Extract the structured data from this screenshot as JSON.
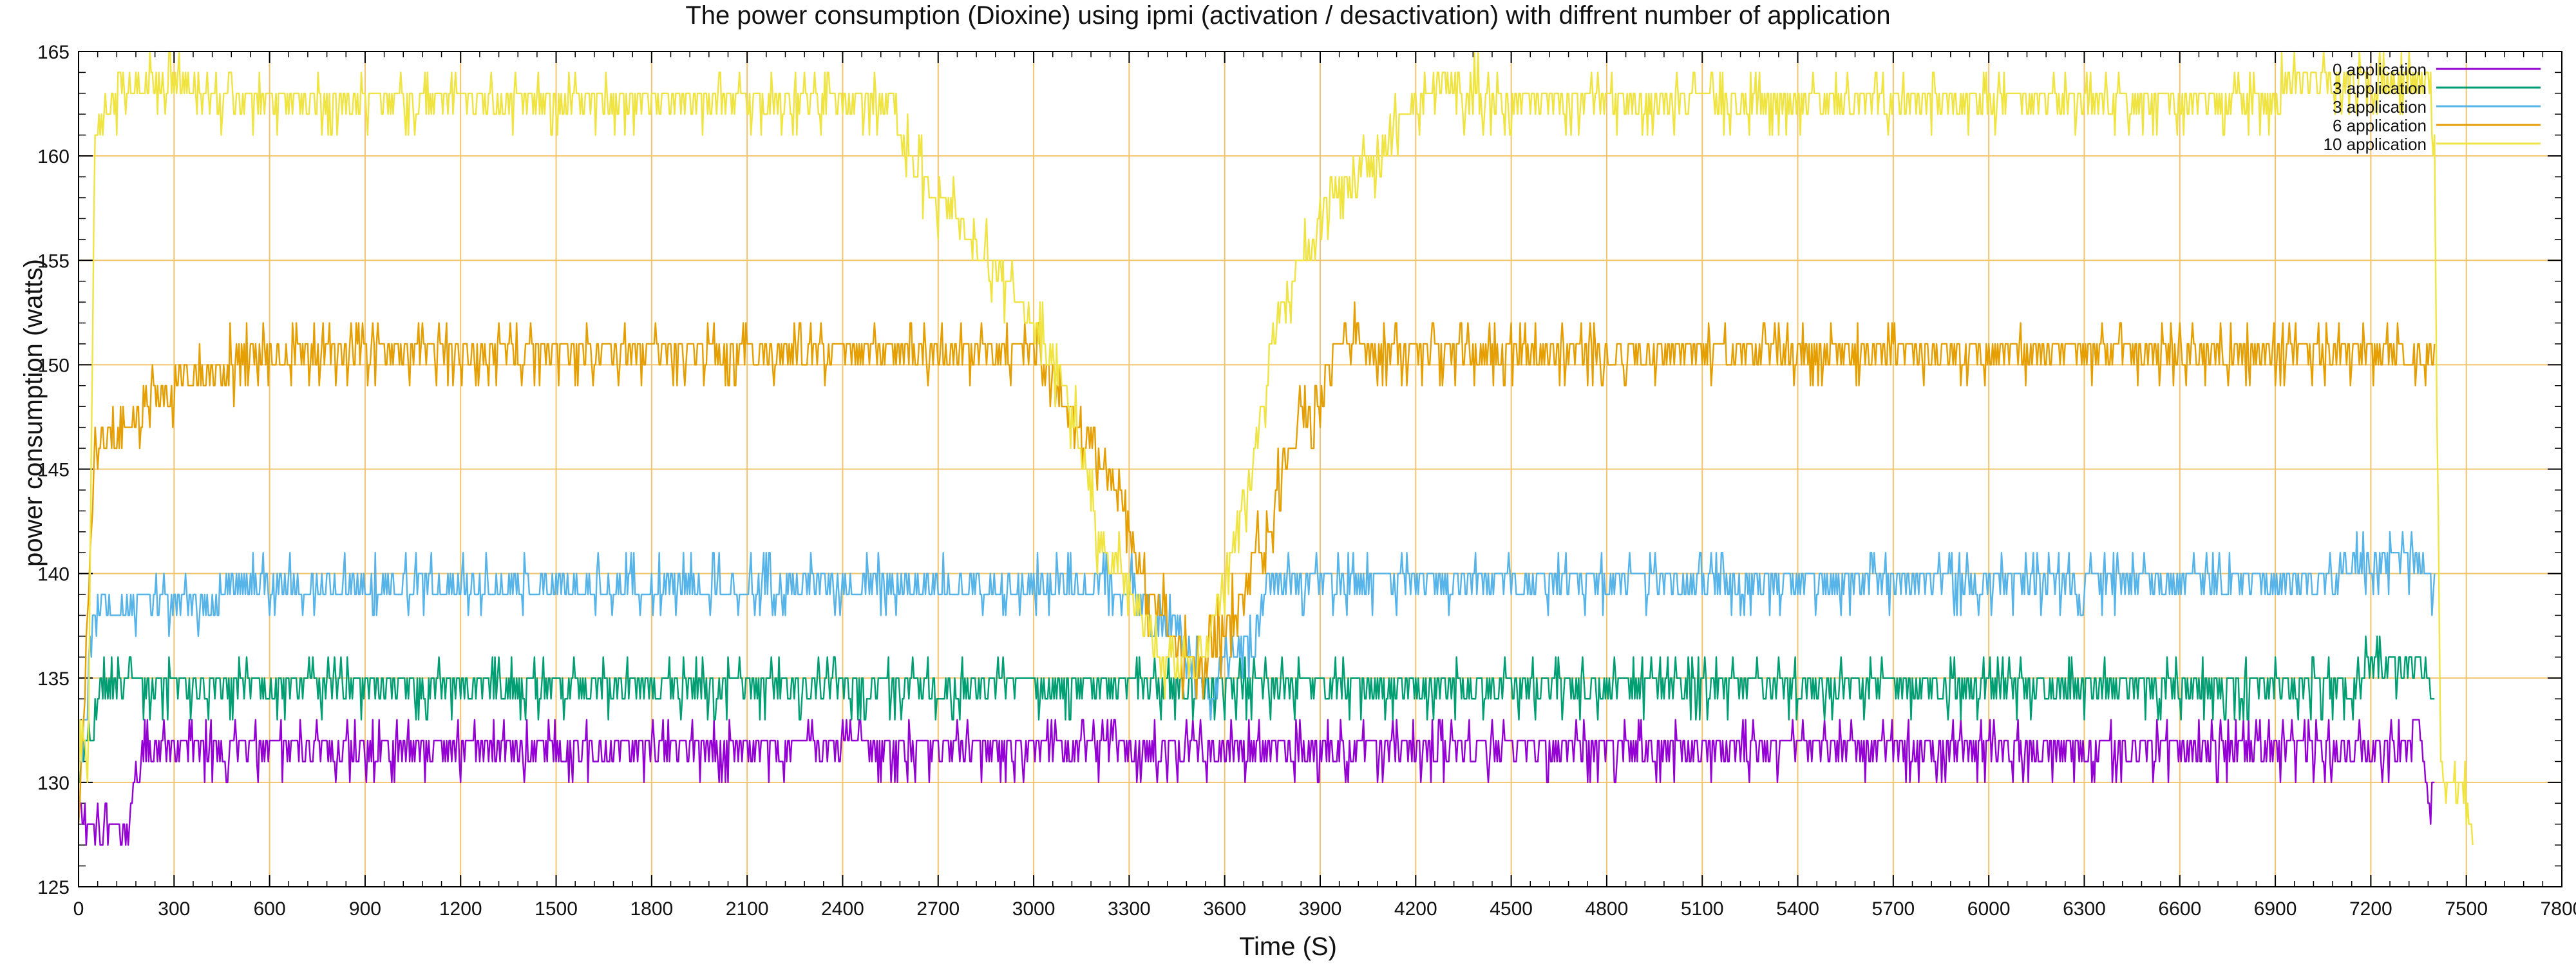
{
  "chart_data": {
    "type": "line",
    "title": "The power consumption (Dioxine) using ipmi (activation / desactivation) with diffrent number of application",
    "xlabel": "Time (S)",
    "ylabel": "power consumption (watts)",
    "xlim": [
      0,
      7800
    ],
    "ylim": [
      125,
      165
    ],
    "xticks": [
      0,
      300,
      600,
      900,
      1200,
      1500,
      1800,
      2100,
      2400,
      2700,
      3000,
      3300,
      3600,
      3900,
      4200,
      4500,
      4800,
      5100,
      5400,
      5700,
      6000,
      6300,
      6600,
      6900,
      7200,
      7500,
      7800
    ],
    "yticks": [
      125,
      130,
      135,
      140,
      145,
      150,
      155,
      160,
      165
    ],
    "grid": true,
    "legend_position": "top-right",
    "colors": {
      "grid": "#f2c46d",
      "series": [
        "#9400d3",
        "#009e73",
        "#56b4e9",
        "#e69f00",
        "#f0e442"
      ]
    },
    "series": [
      {
        "name": "0 application",
        "color": "#9400d3",
        "base": [
          [
            0,
            129
          ],
          [
            10,
            128
          ],
          [
            60,
            127.5
          ],
          [
            150,
            127.5
          ],
          [
            200,
            131
          ],
          [
            240,
            131.5
          ],
          [
            7150,
            131.5
          ],
          [
            7300,
            132
          ],
          [
            7350,
            133
          ],
          [
            7380,
            129.5
          ],
          [
            7400,
            129.5
          ]
        ],
        "noise": 1
      },
      {
        "name": "3 application",
        "color": "#009e73",
        "base": [
          [
            0,
            130
          ],
          [
            10,
            131
          ],
          [
            30,
            132
          ],
          [
            80,
            134.5
          ],
          [
            7150,
            134.5
          ],
          [
            7220,
            135.8
          ],
          [
            7350,
            135.8
          ],
          [
            7390,
            134.5
          ],
          [
            7400,
            134.5
          ]
        ],
        "noise": 1
      },
      {
        "name": "3 application",
        "color": "#56b4e9",
        "base": [
          [
            0,
            130
          ],
          [
            50,
            138
          ],
          [
            180,
            138.5
          ],
          [
            600,
            139.3
          ],
          [
            3300,
            139.3
          ],
          [
            3370,
            138
          ],
          [
            3430,
            137.5
          ],
          [
            3500,
            136
          ],
          [
            3560,
            133.5
          ],
          [
            3600,
            136
          ],
          [
            3700,
            137
          ],
          [
            3730,
            139.5
          ],
          [
            7100,
            140
          ],
          [
            7300,
            141
          ],
          [
            7390,
            140
          ],
          [
            7400,
            139
          ]
        ],
        "noise": 1
      },
      {
        "name": "6 application",
        "color": "#e69f00",
        "base": [
          [
            0,
            128
          ],
          [
            50,
            145.5
          ],
          [
            100,
            146.5
          ],
          [
            200,
            148
          ],
          [
            300,
            149
          ],
          [
            500,
            150
          ],
          [
            700,
            150.6
          ],
          [
            3000,
            150.6
          ],
          [
            3050,
            149.5
          ],
          [
            3100,
            148
          ],
          [
            3150,
            147
          ],
          [
            3200,
            146
          ],
          [
            3250,
            144.5
          ],
          [
            3300,
            142.5
          ],
          [
            3350,
            139
          ],
          [
            3420,
            138
          ],
          [
            3470,
            136
          ],
          [
            3500,
            135.5
          ],
          [
            3550,
            136
          ],
          [
            3580,
            137
          ],
          [
            3650,
            138.5
          ],
          [
            3700,
            141
          ],
          [
            3750,
            143
          ],
          [
            3800,
            146
          ],
          [
            3850,
            148
          ],
          [
            3900,
            148
          ],
          [
            3940,
            151
          ],
          [
            3980,
            151.5
          ],
          [
            4050,
            150.6
          ],
          [
            7400,
            150.6
          ]
        ],
        "noise": 1.2
      },
      {
        "name": "10 application",
        "color": "#f0e442",
        "base": [
          [
            0,
            131
          ],
          [
            30,
            131
          ],
          [
            50,
            160
          ],
          [
            80,
            162
          ],
          [
            150,
            163.5
          ],
          [
            350,
            163.3
          ],
          [
            400,
            162.6
          ],
          [
            2550,
            162.6
          ],
          [
            2600,
            160
          ],
          [
            2700,
            158
          ],
          [
            2800,
            156
          ],
          [
            2900,
            154
          ],
          [
            3000,
            152
          ],
          [
            3050,
            150
          ],
          [
            3100,
            148.5
          ],
          [
            3150,
            146
          ],
          [
            3200,
            142
          ],
          [
            3250,
            140.5
          ],
          [
            3300,
            139.5
          ],
          [
            3350,
            138
          ],
          [
            3400,
            136
          ],
          [
            3450,
            135.5
          ],
          [
            3500,
            135.5
          ],
          [
            3550,
            137
          ],
          [
            3600,
            140
          ],
          [
            3650,
            143
          ],
          [
            3700,
            146
          ],
          [
            3750,
            151
          ],
          [
            3800,
            154
          ],
          [
            3850,
            155
          ],
          [
            3900,
            157
          ],
          [
            4000,
            158.5
          ],
          [
            4100,
            160.5
          ],
          [
            4200,
            162.6
          ],
          [
            4250,
            163.3
          ],
          [
            4500,
            162.6
          ],
          [
            6900,
            162.8
          ],
          [
            6950,
            163.5
          ],
          [
            7380,
            163.5
          ],
          [
            7400,
            160
          ],
          [
            7420,
            130
          ],
          [
            7500,
            129
          ],
          [
            7520,
            128
          ]
        ],
        "noise": 1.2
      }
    ]
  }
}
